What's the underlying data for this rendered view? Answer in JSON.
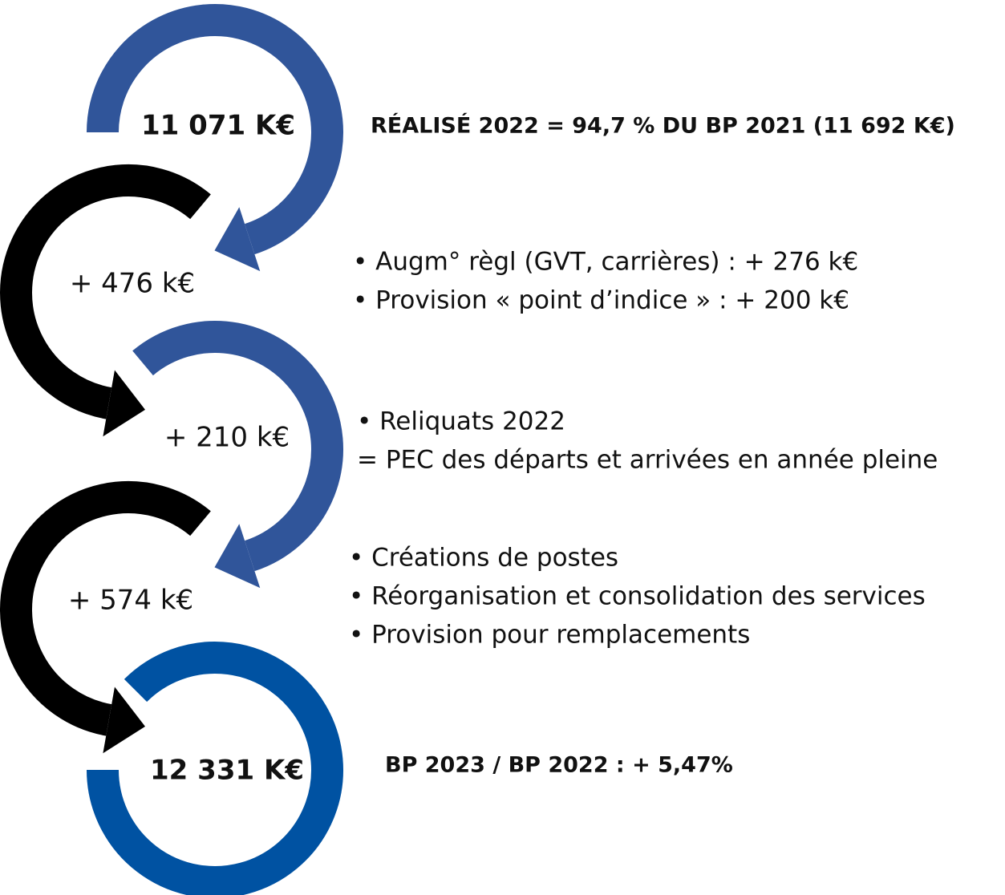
{
  "steps": [
    {
      "value": "11 071 K€",
      "notes": [
        "RÉALISÉ 2022 = 94,7 % DU BP 2021 (11 692 K€)"
      ]
    },
    {
      "value": "+ 476 k€",
      "notes": [
        "• Augm° règl (GVT, carrières) :  + 276 k€",
        "• Provision « point d’indice » : + 200 k€"
      ]
    },
    {
      "value": "+ 210 k€",
      "notes": [
        "• Reliquats 2022",
        "= PEC des départs et arrivées en année pleine"
      ]
    },
    {
      "value": "+ 574 k€",
      "notes": [
        "• Créations de postes",
        "• Réorganisation et consolidation des services",
        "• Provision pour remplacements"
      ]
    },
    {
      "value": "12 331 K€",
      "notes": [
        "BP 2023 / BP 2022  : + 5,47%"
      ]
    }
  ]
}
